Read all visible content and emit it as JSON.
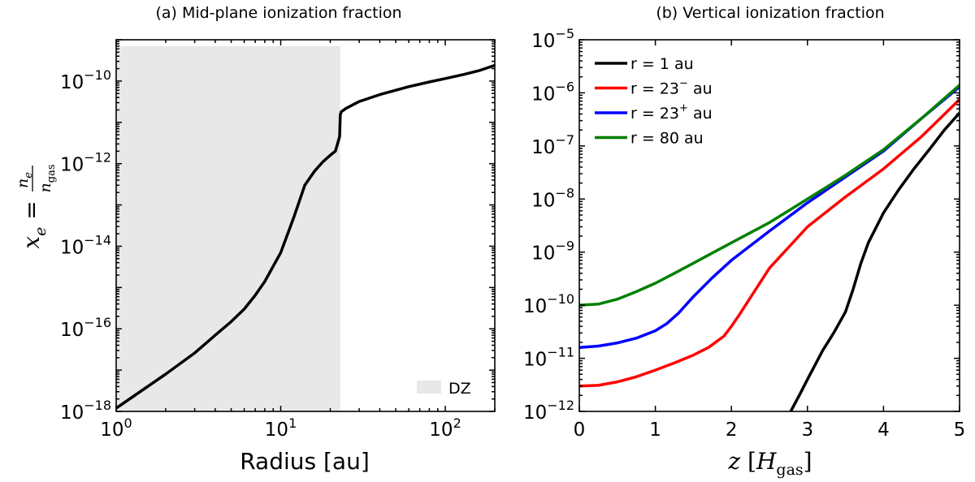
{
  "chart_data": [
    {
      "type": "line",
      "title": "(a) Mid-plane ionization fraction",
      "xlabel": "Radius [au]",
      "ylabel": "x_e = n_e / n_gas",
      "xscale": "log",
      "yscale": "log",
      "xlim": [
        1,
        200
      ],
      "ylim": [
        1e-18,
        1e-09
      ],
      "xticks": [
        {
          "value": 1,
          "label": "10",
          "exp": "0"
        },
        {
          "value": 10,
          "label": "10",
          "exp": "1"
        },
        {
          "value": 100,
          "label": "10",
          "exp": "2"
        }
      ],
      "yticks": [
        {
          "value": 1e-18,
          "label": "10",
          "exp": "−18"
        },
        {
          "value": 1e-16,
          "label": "10",
          "exp": "−16"
        },
        {
          "value": 1e-14,
          "label": "10",
          "exp": "−14"
        },
        {
          "value": 1e-12,
          "label": "10",
          "exp": "−12"
        },
        {
          "value": 1e-10,
          "label": "10",
          "exp": "−10"
        }
      ],
      "shaded_region": {
        "label": "DZ",
        "x": [
          1,
          23
        ],
        "y_top": 7e-10,
        "color": "#e8e8e8"
      },
      "legend_position": "bottom-right",
      "series": [
        {
          "name": "mid-plane",
          "color": "#000000",
          "x": [
            1,
            2,
            3,
            4,
            5,
            6,
            7,
            8,
            10,
            12,
            14,
            16,
            18,
            20,
            21.5,
            22.8,
            23,
            23.3,
            25,
            30,
            40,
            60,
            80,
            100,
            130,
            160,
            200
          ],
          "y": [
            1.2e-18,
            8e-18,
            2.6e-17,
            7e-17,
            1.5e-16,
            3e-16,
            6.5e-16,
            1.4e-15,
            7e-15,
            5e-14,
            3e-13,
            6.5e-13,
            1.1e-12,
            1.6e-12,
            2e-12,
            4.5e-12,
            1.5e-11,
            1.8e-11,
            2.2e-11,
            3.2e-11,
            4.7e-11,
            7.3e-11,
            9.5e-11,
            1.15e-10,
            1.45e-10,
            1.78e-10,
            2.4e-10
          ]
        }
      ]
    },
    {
      "type": "line",
      "title": "(b) Vertical ionization fraction",
      "xlabel": "z [H_gas]",
      "ylabel": "",
      "xscale": "linear",
      "yscale": "log",
      "xlim": [
        0,
        5
      ],
      "ylim": [
        1e-12,
        1e-05
      ],
      "xticks": [
        {
          "value": 0,
          "label": "0"
        },
        {
          "value": 1,
          "label": "1"
        },
        {
          "value": 2,
          "label": "2"
        },
        {
          "value": 3,
          "label": "3"
        },
        {
          "value": 4,
          "label": "4"
        },
        {
          "value": 5,
          "label": "5"
        }
      ],
      "yticks": [
        {
          "value": 1e-12,
          "label": "10",
          "exp": "−12"
        },
        {
          "value": 1e-11,
          "label": "10",
          "exp": "−11"
        },
        {
          "value": 1e-10,
          "label": "10",
          "exp": "−10"
        },
        {
          "value": 1e-09,
          "label": "10",
          "exp": "−9"
        },
        {
          "value": 1e-08,
          "label": "10",
          "exp": "−8"
        },
        {
          "value": 1e-07,
          "label": "10",
          "exp": "−7"
        },
        {
          "value": 1e-06,
          "label": "10",
          "exp": "−6"
        },
        {
          "value": 1e-05,
          "label": "10",
          "exp": "−5"
        }
      ],
      "legend_position": "top-left",
      "series": [
        {
          "name": "r = 1 au",
          "name_prefix": "r = 1",
          "name_sup": "",
          "name_suffix": " au",
          "color": "#000000",
          "x": [
            2.78,
            2.9,
            3.0,
            3.1,
            3.2,
            3.35,
            3.5,
            3.6,
            3.7,
            3.8,
            4.0,
            4.2,
            4.4,
            4.6,
            4.8,
            5.0
          ],
          "y": [
            1e-12,
            2.1e-12,
            4e-12,
            7.5e-12,
            1.4e-11,
            3.1e-11,
            7.5e-11,
            2e-10,
            6e-10,
            1.5e-09,
            5.5e-09,
            1.5e-08,
            3.7e-08,
            8.5e-08,
            2e-07,
            4.2e-07
          ]
        },
        {
          "name": "r = 23⁻ au",
          "name_prefix": "r = 23",
          "name_sup": "−",
          "name_suffix": " au",
          "color": "#ff0000",
          "x": [
            0,
            0.25,
            0.5,
            0.75,
            1.0,
            1.25,
            1.5,
            1.7,
            1.9,
            2.0,
            2.1,
            2.3,
            2.5,
            3.0,
            3.5,
            4.0,
            4.5,
            5.0
          ],
          "y": [
            3e-12,
            3.1e-12,
            3.6e-12,
            4.5e-12,
            6e-12,
            8.2e-12,
            1.15e-11,
            1.6e-11,
            2.6e-11,
            4e-11,
            6.5e-11,
            1.8e-10,
            5e-10,
            3e-09,
            1.1e-08,
            3.7e-08,
            1.5e-07,
            7.5e-07
          ]
        },
        {
          "name": "r = 23⁺ au",
          "name_prefix": "r = 23",
          "name_sup": "+",
          "name_suffix": " au",
          "color": "#0000ff",
          "x": [
            0,
            0.25,
            0.5,
            0.75,
            1.0,
            1.15,
            1.3,
            1.5,
            1.75,
            2.0,
            2.5,
            3.0,
            3.5,
            4.0,
            4.5,
            5.0
          ],
          "y": [
            1.6e-11,
            1.7e-11,
            1.95e-11,
            2.4e-11,
            3.3e-11,
            4.5e-11,
            7e-11,
            1.45e-10,
            3.3e-10,
            7e-10,
            2.5e-09,
            8.5e-09,
            2.6e-08,
            8e-08,
            3.3e-07,
            1.3e-06
          ]
        },
        {
          "name": "r = 80 au",
          "name_prefix": "r = 80",
          "name_sup": "",
          "name_suffix": " au",
          "color": "#008000",
          "x": [
            0,
            0.25,
            0.5,
            0.75,
            1.0,
            1.25,
            1.5,
            2.0,
            2.5,
            3.0,
            3.5,
            4.0,
            4.5,
            5.0
          ],
          "y": [
            1e-10,
            1.05e-10,
            1.3e-10,
            1.8e-10,
            2.6e-10,
            4e-10,
            6.2e-10,
            1.5e-09,
            3.6e-09,
            1e-08,
            2.8e-08,
            8.5e-08,
            3.3e-07,
            1.4e-06
          ]
        }
      ]
    }
  ]
}
